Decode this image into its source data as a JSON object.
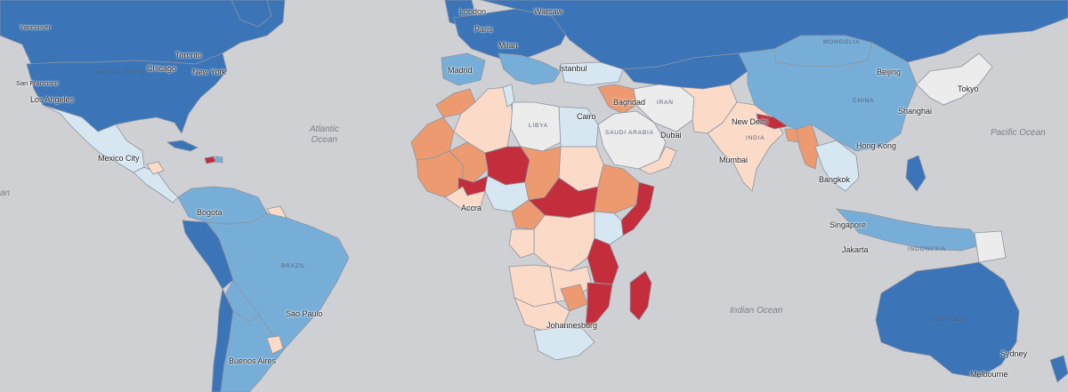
{
  "map": {
    "colors": {
      "ocean": "#cfd0d4",
      "dark_blue": "#3b75b8",
      "mid_blue": "#77aed7",
      "light_blue": "#d6e7f1",
      "light_gray": "#ececec",
      "peach": "#fcdac8",
      "orange": "#ed9a70",
      "dark_red": "#c42e3c"
    },
    "oceans": {
      "atlantic_line1": "Atlantic",
      "atlantic_line2": "Ocean",
      "pacific": "Pacific Ocean",
      "indian": "Indian Ocean",
      "west_fragment": "an"
    },
    "cities": {
      "london": "London",
      "warsaw": "Warsaw",
      "paris": "Paris",
      "milan": "Milan",
      "madrid": "Madrid",
      "istanbul": "Istanbul",
      "vancouver": "Vancouver",
      "toronto": "Toronto",
      "chicago": "Chicago",
      "new_york": "New York",
      "san_francisco": "San Francisco",
      "los_angeles": "Los Angeles",
      "mexico_city": "Mexico City",
      "bogota": "Bogota",
      "sao_paulo": "Sao Paulo",
      "buenos_aires": "Buenos Aires",
      "cairo": "Cairo",
      "baghdad": "Baghdad",
      "dubai": "Dubai",
      "new_delhi": "New Delhi",
      "mumbai": "Mumbai",
      "beijing": "Beijing",
      "tokyo": "Tokyo",
      "shanghai": "Shanghai",
      "hong_kong": "Hong Kong",
      "bangkok": "Bangkok",
      "singapore": "Singapore",
      "jakarta": "Jakarta",
      "accra": "Accra",
      "johannesburg": "Johannesburg",
      "sydney": "Sydney",
      "melbourne": "Melbourne"
    },
    "countries": {
      "united_states": "United States",
      "libya": "Libya",
      "saudi_arabia": "Saudi Arabia",
      "iran": "Iran",
      "mongolia": "Mongolia",
      "india": "India",
      "brazil": "Brazil",
      "australia": "Australia",
      "indonesia": "Indonesia",
      "china": "China"
    }
  }
}
